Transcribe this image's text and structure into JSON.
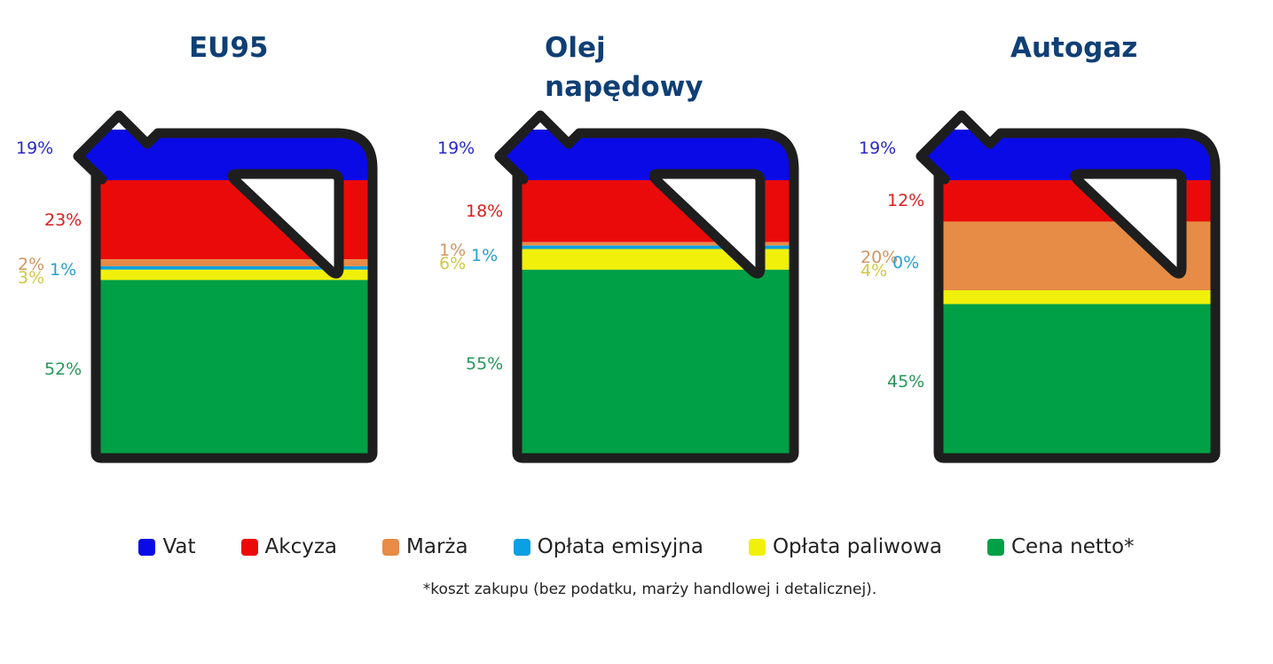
{
  "chart_data": [
    {
      "type": "stacked-bar",
      "title": "EU95",
      "segments": [
        {
          "name": "Vat",
          "label": "19%",
          "value": 19
        },
        {
          "name": "Akcyza",
          "label": "23%",
          "value": 23
        },
        {
          "name": "Marża",
          "label": "2%",
          "value": 2
        },
        {
          "name": "Opłata emisyjna",
          "label": "1%",
          "value": 1
        },
        {
          "name": "Opłata paliwowa",
          "label": "3%",
          "value": 3
        },
        {
          "name": "Cena netto*",
          "label": "52%",
          "value": 52
        }
      ]
    },
    {
      "type": "stacked-bar",
      "title": "Olej napędowy",
      "segments": [
        {
          "name": "Vat",
          "label": "19%",
          "value": 19
        },
        {
          "name": "Akcyza",
          "label": "18%",
          "value": 18
        },
        {
          "name": "Marża",
          "label": "1%",
          "value": 1
        },
        {
          "name": "Opłata emisyjna",
          "label": "1%",
          "value": 1
        },
        {
          "name": "Opłata paliwowa",
          "label": "6%",
          "value": 6
        },
        {
          "name": "Cena netto*",
          "label": "55%",
          "value": 55
        }
      ]
    },
    {
      "type": "stacked-bar",
      "title": "Autogaz",
      "segments": [
        {
          "name": "Vat",
          "label": "19%",
          "value": 19
        },
        {
          "name": "Akcyza",
          "label": "12%",
          "value": 12
        },
        {
          "name": "Marża",
          "label": "20%",
          "value": 20
        },
        {
          "name": "Opłata emisyjna",
          "label": "0%",
          "value": 0
        },
        {
          "name": "Opłata paliwowa",
          "label": "4%",
          "value": 4
        },
        {
          "name": "Cena netto*",
          "label": "45%",
          "value": 45
        }
      ]
    }
  ],
  "legend": [
    {
      "label": "Vat",
      "color": "#0a0ae6"
    },
    {
      "label": "Akcyza",
      "color": "#eb0a0a"
    },
    {
      "label": "Marża",
      "color": "#e68c46"
    },
    {
      "label": "Opłata emisyjna",
      "color": "#0aa0e1"
    },
    {
      "label": "Opłata paliwowa",
      "color": "#f0f00a"
    },
    {
      "label": "Cena netto*",
      "color": "#00a046"
    }
  ],
  "footnote": "*koszt zakupu (bez podatku, marży handlowej i detalicznej).",
  "colors": {
    "title": "#0f3f74",
    "outline": "#1e1e1e",
    "label_vat": "#2828c8",
    "label_akcyza": "#dc1e1e",
    "label_marza": "#d29664",
    "label_emisyjna": "#28a0d2",
    "label_paliwowa": "#d2c846",
    "label_netto": "#28965a"
  }
}
